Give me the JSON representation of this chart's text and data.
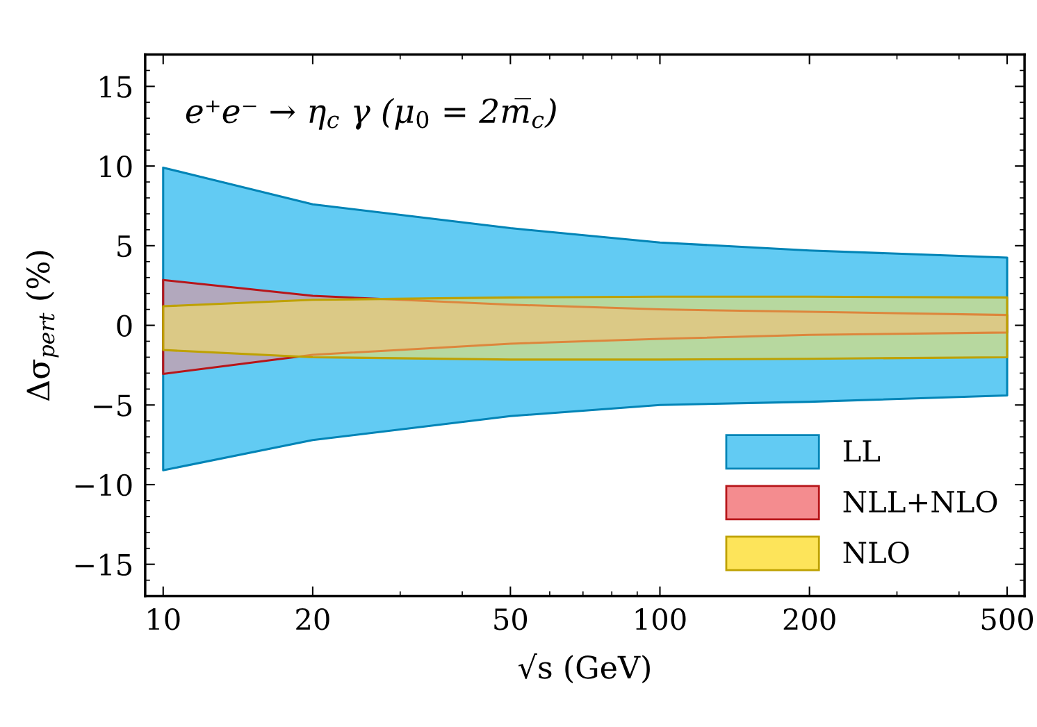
{
  "chart_data": {
    "type": "area",
    "annotations": [
      "e⁺e⁻ → η$_{c}$ γ (μ$_{0}$ = 2m̅$_{c}$)"
    ],
    "xlabel": "√s (GeV)",
    "ylabel": "Δσ$_{pert}$ (%)",
    "log": "x",
    "x": [
      10,
      20,
      50,
      100,
      200,
      500
    ],
    "series": [
      {
        "name": "LL",
        "color": "#62cbf3",
        "values": [
          null,
          null,
          null,
          null,
          null,
          null
        ],
        "upper": [
          9.9,
          7.6,
          6.1,
          5.2,
          4.7,
          4.25
        ],
        "lower": [
          -9.1,
          -7.2,
          -5.7,
          -5.0,
          -4.8,
          -4.4
        ]
      },
      {
        "name": "NLL+NLO",
        "color": "#f48c8f",
        "values": [
          null,
          null,
          null,
          null,
          null,
          null
        ],
        "upper": [
          2.85,
          1.85,
          1.3,
          1.0,
          0.85,
          0.65
        ],
        "lower": [
          -3.05,
          -1.85,
          -1.15,
          -0.85,
          -0.6,
          -0.45
        ]
      },
      {
        "name": "NLO",
        "color": "#fde45a",
        "values": [
          null,
          null,
          null,
          null,
          null,
          null
        ],
        "upper": [
          1.2,
          1.6,
          1.75,
          1.8,
          1.8,
          1.75
        ],
        "lower": [
          -1.55,
          -2.0,
          -2.15,
          -2.15,
          -2.1,
          -2.0
        ]
      }
    ],
    "xlim": [
      9.2,
      542
    ],
    "ylim": [
      -17,
      17
    ],
    "xticks": [
      10,
      20,
      50,
      100,
      200,
      500
    ],
    "yticks": [
      -15,
      -10,
      -5,
      0,
      5,
      10,
      15
    ],
    "legend": "bottom right",
    "grid": false
  }
}
